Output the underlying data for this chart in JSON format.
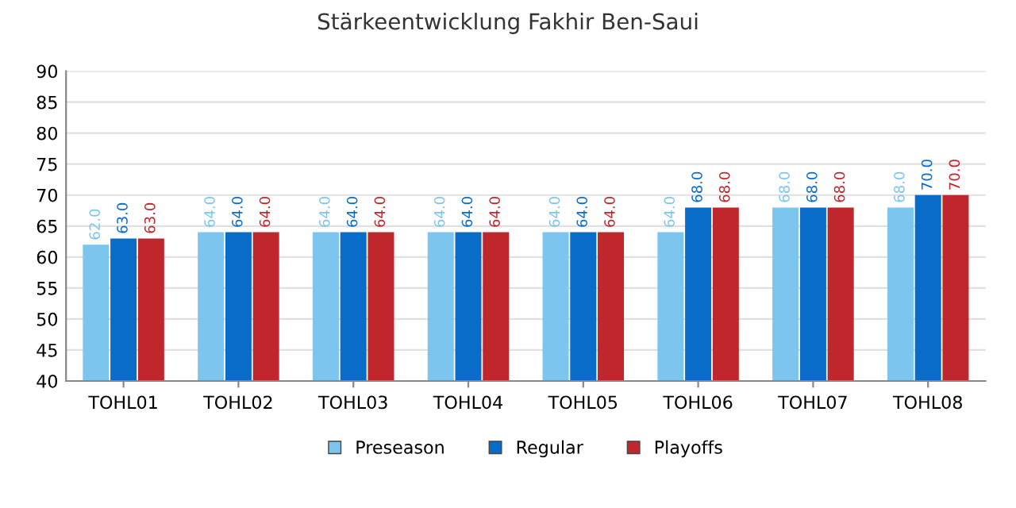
{
  "chart_data": {
    "type": "bar",
    "title": "Stärkeentwicklung Fakhir Ben-Saui",
    "categories": [
      "TOHL01",
      "TOHL02",
      "TOHL03",
      "TOHL04",
      "TOHL05",
      "TOHL06",
      "TOHL07",
      "TOHL08"
    ],
    "series": [
      {
        "name": "Preseason",
        "color": "#7cc5ef",
        "values": [
          62,
          64,
          64,
          64,
          64,
          64,
          68,
          68
        ],
        "value_labels": [
          "62.0",
          "64.0",
          "64.0",
          "64.0",
          "64.0",
          "64.0",
          "68.0",
          "68.0"
        ]
      },
      {
        "name": "Regular",
        "color": "#0a6cc9",
        "values": [
          63,
          64,
          64,
          64,
          64,
          68,
          68,
          70
        ],
        "value_labels": [
          "63.0",
          "64.0",
          "64.0",
          "64.0",
          "64.0",
          "68.0",
          "68.0",
          "70.0"
        ]
      },
      {
        "name": "Playoffs",
        "color": "#c0272d",
        "values": [
          63,
          64,
          64,
          64,
          64,
          68,
          68,
          70
        ],
        "value_labels": [
          "63.0",
          "64.0",
          "64.0",
          "64.0",
          "64.0",
          "68.0",
          "68.0",
          "70.0"
        ]
      }
    ],
    "ylim": [
      40,
      90
    ],
    "yticks": [
      40,
      45,
      50,
      55,
      60,
      65,
      70,
      75,
      80,
      85,
      90
    ],
    "grid": "y",
    "legend": "bottom"
  }
}
